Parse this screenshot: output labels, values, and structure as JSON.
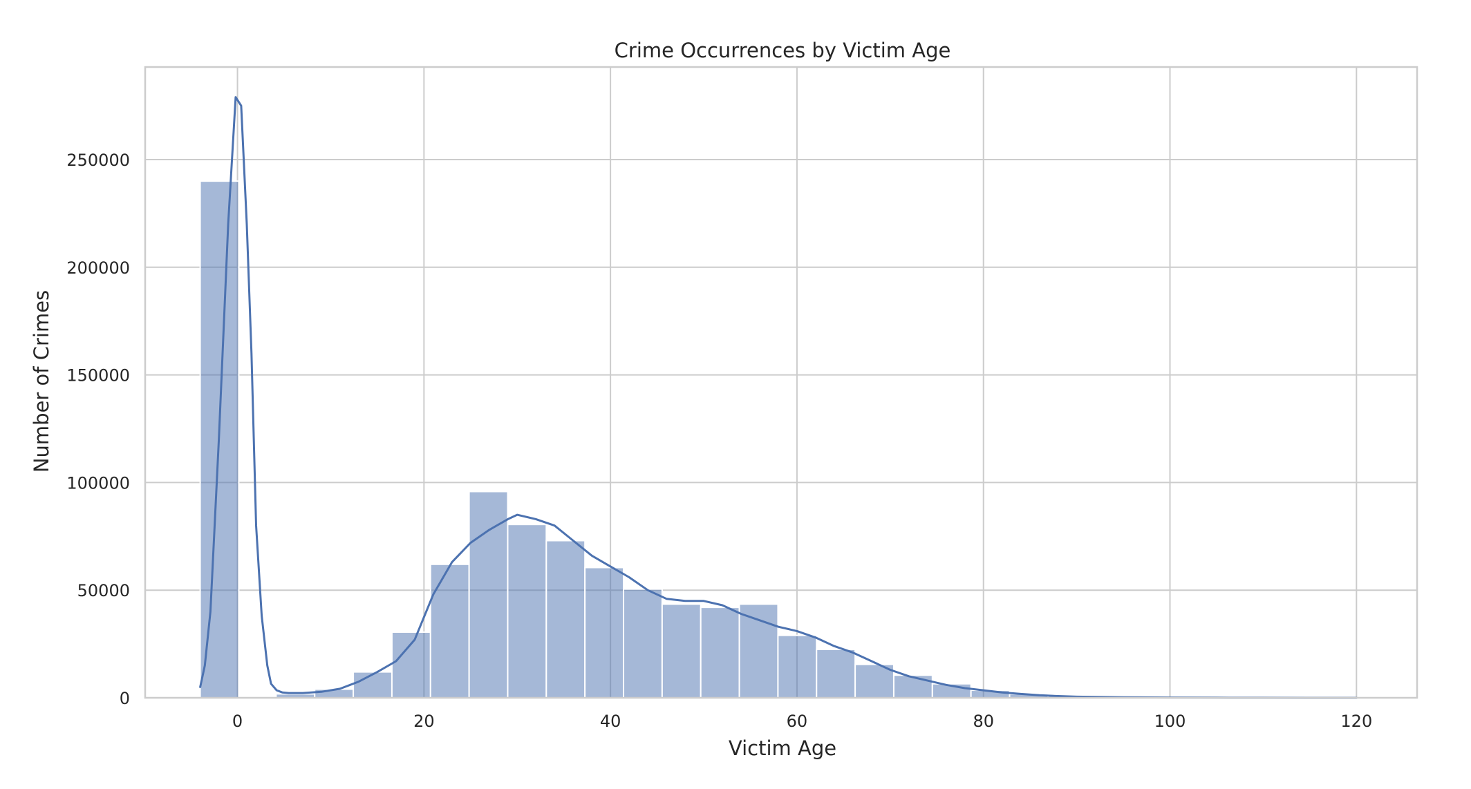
{
  "chart_data": {
    "type": "bar",
    "subtype": "histogram_with_kde",
    "title": "Crime Occurrences by Victim Age",
    "xlabel": "Victim Age",
    "ylabel": "Number of Crimes",
    "xlim": [
      -9.9,
      126.5
    ],
    "ylim": [
      0,
      293000
    ],
    "xticks": [
      0,
      20,
      40,
      60,
      80,
      100,
      120
    ],
    "yticks": [
      0,
      50000,
      100000,
      150000,
      200000,
      250000
    ],
    "grid": true,
    "legend": "none",
    "color": "#4c72b0",
    "bins": [
      {
        "x0": -4.0,
        "x1": 0.14,
        "value": 240000
      },
      {
        "x0": 4.14,
        "x1": 8.28,
        "value": 1800
      },
      {
        "x0": 8.28,
        "x1": 12.42,
        "value": 4000
      },
      {
        "x0": 12.42,
        "x1": 16.56,
        "value": 12000
      },
      {
        "x0": 16.56,
        "x1": 20.7,
        "value": 30500
      },
      {
        "x0": 20.7,
        "x1": 24.84,
        "value": 62000
      },
      {
        "x0": 24.84,
        "x1": 28.98,
        "value": 95800
      },
      {
        "x0": 28.98,
        "x1": 33.12,
        "value": 80500
      },
      {
        "x0": 33.12,
        "x1": 37.26,
        "value": 73000
      },
      {
        "x0": 37.26,
        "x1": 41.4,
        "value": 60500
      },
      {
        "x0": 41.4,
        "x1": 45.54,
        "value": 50500
      },
      {
        "x0": 45.54,
        "x1": 49.68,
        "value": 43500
      },
      {
        "x0": 49.68,
        "x1": 53.82,
        "value": 42000
      },
      {
        "x0": 53.82,
        "x1": 57.96,
        "value": 43500
      },
      {
        "x0": 57.96,
        "x1": 62.1,
        "value": 29000
      },
      {
        "x0": 62.1,
        "x1": 66.24,
        "value": 22500
      },
      {
        "x0": 66.24,
        "x1": 70.38,
        "value": 15500
      },
      {
        "x0": 70.38,
        "x1": 74.52,
        "value": 10500
      },
      {
        "x0": 74.52,
        "x1": 78.66,
        "value": 6500
      },
      {
        "x0": 78.66,
        "x1": 82.8,
        "value": 3500
      },
      {
        "x0": 82.8,
        "x1": 86.94,
        "value": 1800
      },
      {
        "x0": 86.94,
        "x1": 91.08,
        "value": 800
      },
      {
        "x0": 91.08,
        "x1": 95.22,
        "value": 400
      },
      {
        "x0": 95.22,
        "x1": 99.36,
        "value": 250
      },
      {
        "x0": 99.36,
        "x1": 103.5,
        "value": 150
      },
      {
        "x0": 103.5,
        "x1": 107.64,
        "value": 100
      },
      {
        "x0": 107.64,
        "x1": 111.78,
        "value": 80
      },
      {
        "x0": 111.78,
        "x1": 115.92,
        "value": 60
      },
      {
        "x0": 115.92,
        "x1": 120.0,
        "value": 50
      }
    ],
    "kde": {
      "x": [
        -4,
        -3.5,
        -2.9,
        -2,
        -1,
        -0.2,
        0.4,
        1,
        1.5,
        2,
        2.6,
        3.2,
        3.6,
        4.2,
        4.8,
        5.5,
        7,
        9,
        11,
        13,
        15,
        17,
        19,
        21,
        23,
        25,
        27,
        29,
        30,
        32,
        34,
        36,
        38,
        40,
        42,
        44,
        46,
        48,
        50,
        52,
        54,
        56,
        58,
        60,
        62,
        64,
        66,
        68,
        70,
        72,
        74,
        76,
        78,
        80,
        82,
        84,
        86,
        88,
        90,
        95,
        100,
        105,
        110,
        115,
        120
      ],
      "y": [
        5000,
        15000,
        40000,
        120000,
        220000,
        279000,
        275000,
        220000,
        160000,
        80000,
        38000,
        15000,
        6500,
        3500,
        2500,
        2200,
        2200,
        2800,
        4200,
        7500,
        12000,
        17000,
        27000,
        48000,
        63000,
        72000,
        78000,
        83000,
        85000,
        83000,
        80000,
        73000,
        66000,
        61000,
        56000,
        50000,
        46000,
        45000,
        45000,
        43000,
        39000,
        36000,
        33000,
        31000,
        28000,
        24000,
        21000,
        17000,
        13000,
        10000,
        8000,
        6000,
        4500,
        3500,
        2500,
        1800,
        1200,
        800,
        500,
        250,
        120,
        60,
        30,
        15,
        5
      ]
    }
  }
}
